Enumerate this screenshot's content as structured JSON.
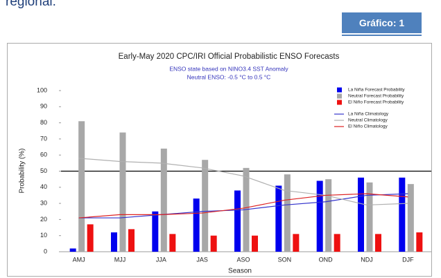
{
  "document": {
    "text": "regional.",
    "badge": "Gráfico: 1"
  },
  "chart_data": {
    "type": "bar",
    "title": "Early-May 2020 CPC/IRI Official Probabilistic ENSO Forecasts",
    "subtitle": "ENSO state based on NINO3.4 SST Anomaly",
    "subtitle2": "Neutral ENSO: -0.5 °C to 0.5 °C",
    "y_label": "Probability (%)",
    "x_label": "Season",
    "categories": [
      "AMJ",
      "MJJ",
      "JJA",
      "JAS",
      "ASO",
      "SON",
      "OND",
      "NDJ",
      "DJF"
    ],
    "series": [
      {
        "name": "La Niña Forecast Probability",
        "type": "bar",
        "color": "#0000ee",
        "values": [
          2,
          12,
          25,
          33,
          38,
          41,
          44,
          46,
          46
        ]
      },
      {
        "name": "Neutral Forecast Probability",
        "type": "bar",
        "color": "#a8a8a8",
        "values": [
          81,
          74,
          64,
          57,
          52,
          48,
          45,
          43,
          42
        ]
      },
      {
        "name": "El Niño Forecast Probability",
        "type": "bar",
        "color": "#ee1111",
        "values": [
          17,
          14,
          11,
          10,
          10,
          11,
          11,
          11,
          12
        ]
      },
      {
        "name": "La Niña Climatology",
        "type": "line",
        "color": "#3333cc",
        "values": [
          21,
          21,
          23,
          25,
          26,
          29,
          31,
          35,
          36
        ]
      },
      {
        "name": "Neutral Climatology",
        "type": "line",
        "color": "#b0b0b0",
        "values": [
          58,
          56,
          55,
          52,
          47,
          38,
          35,
          29,
          30
        ]
      },
      {
        "name": "El Niño Climatology",
        "type": "line",
        "color": "#dd2222",
        "values": [
          21,
          23,
          23,
          24,
          27,
          32,
          35,
          36,
          34
        ]
      }
    ],
    "reference_line": 50,
    "ylim": [
      0,
      100
    ],
    "yticks": [
      0,
      10,
      20,
      30,
      40,
      50,
      60,
      70,
      80,
      90,
      100
    ]
  }
}
